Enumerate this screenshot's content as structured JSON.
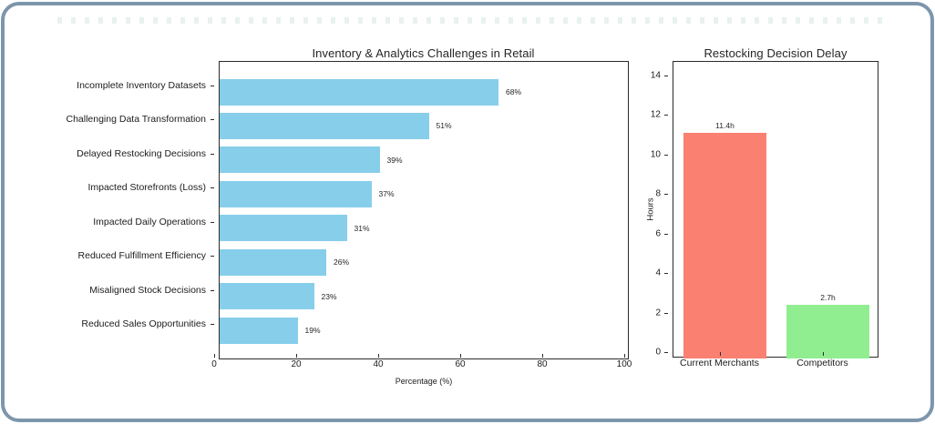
{
  "page": {
    "background_color": "#ffffff",
    "card_border_color": "#7d96ab",
    "text_color": "#262626"
  },
  "chart_data": [
    {
      "type": "bar",
      "orientation": "horizontal",
      "title": "Inventory & Analytics Challenges in Retail",
      "xlabel": "Percentage (%)",
      "categories": [
        "Incomplete Inventory Datasets",
        "Challenging Data Transformation",
        "Delayed Restocking Decisions",
        "Impacted Storefronts (Loss)",
        "Impacted Daily Operations",
        "Reduced Fulfillment Efficiency",
        "Misaligned Stock Decisions",
        "Reduced Sales Opportunities"
      ],
      "values": [
        68,
        51,
        39,
        37,
        31,
        26,
        23,
        19
      ],
      "value_labels": [
        "68%",
        "51%",
        "39%",
        "37%",
        "31%",
        "26%",
        "23%",
        "19%"
      ],
      "xlim": [
        0,
        100
      ],
      "xticks": [
        0,
        20,
        40,
        60,
        80,
        100
      ],
      "bar_color": "#87CEEB",
      "grid": false,
      "legend": "none"
    },
    {
      "type": "bar",
      "orientation": "vertical",
      "title": "Restocking Decision Delay",
      "ylabel": "Hours",
      "categories": [
        "Current Merchants",
        "Competitors"
      ],
      "values": [
        11.4,
        2.7
      ],
      "value_labels": [
        "11.4h",
        "2.7h"
      ],
      "ylim": [
        0,
        15
      ],
      "yticks": [
        0,
        2,
        4,
        6,
        8,
        10,
        12,
        14
      ],
      "bar_colors": [
        "#FA8072",
        "#90EE90"
      ],
      "grid": false,
      "legend": "none"
    }
  ]
}
